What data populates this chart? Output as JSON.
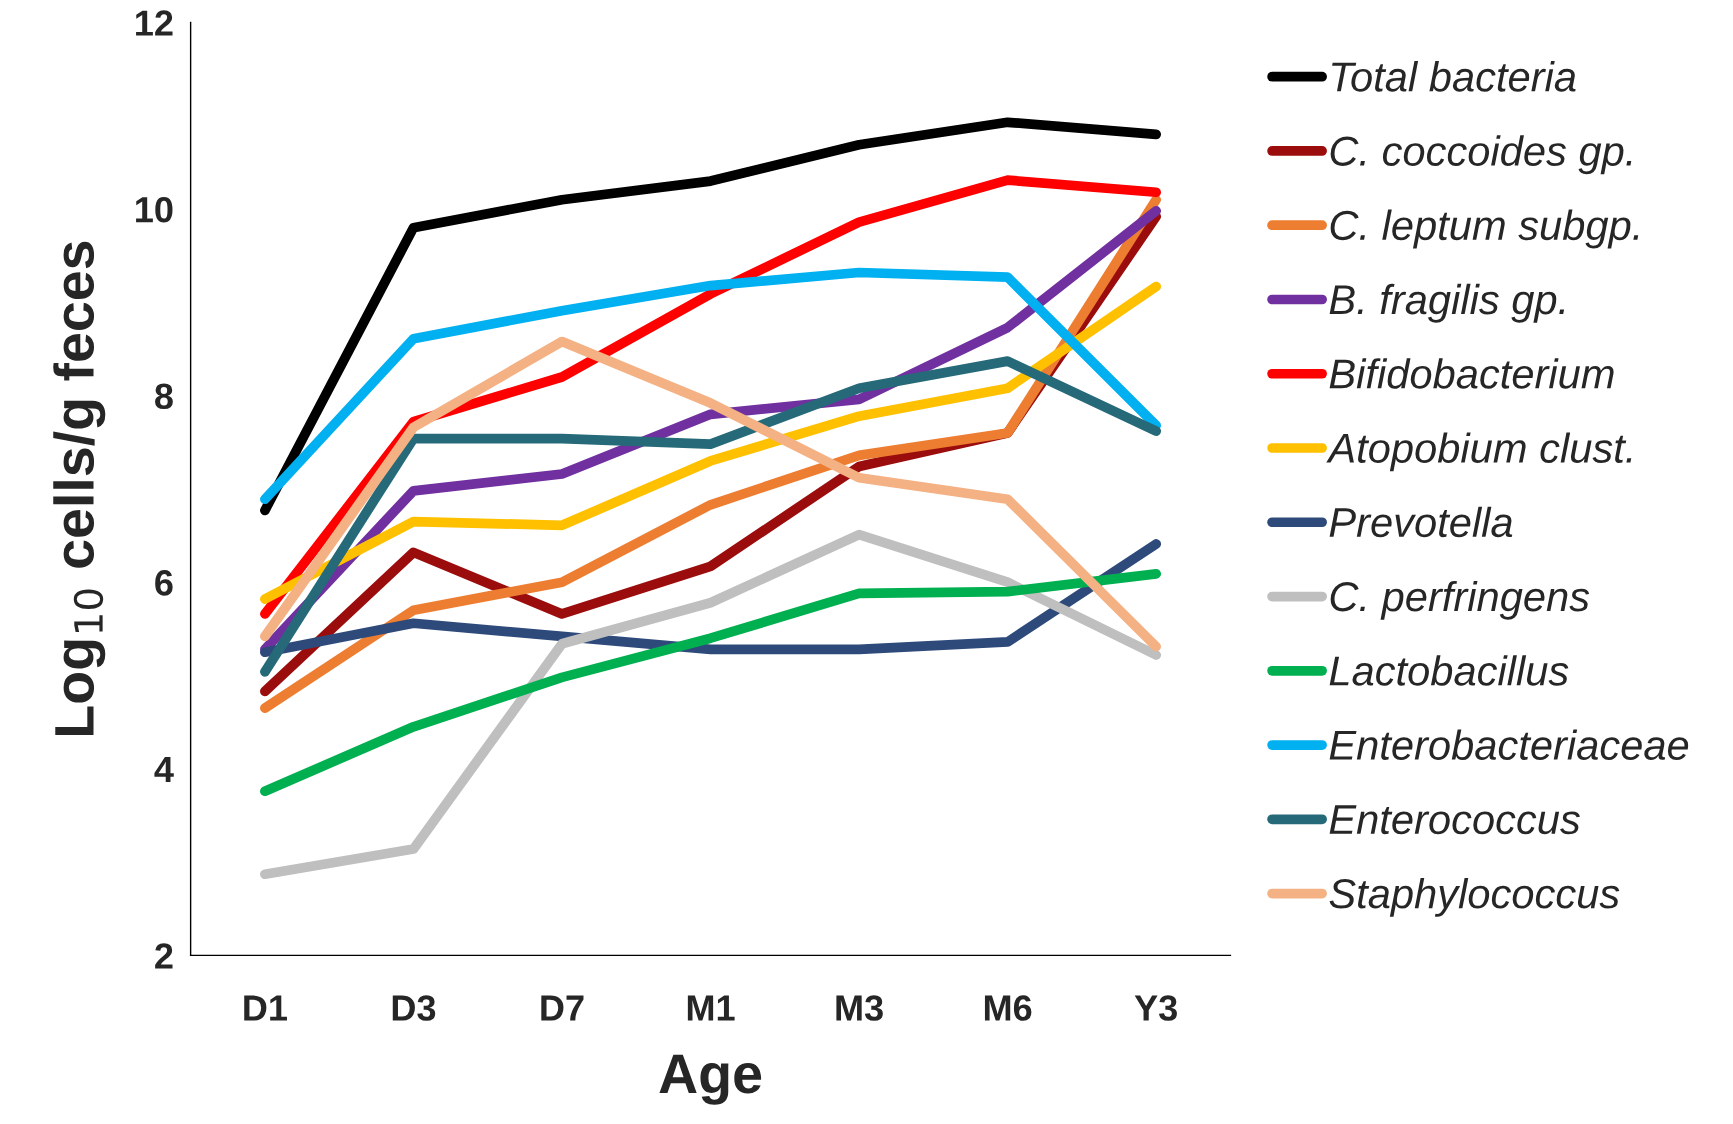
{
  "chart_data": {
    "type": "line",
    "xlabel": "Age",
    "ylabel": "Log$_{10}$ cells/g feces",
    "categories": [
      "D1",
      "D3",
      "D7",
      "M1",
      "M3",
      "M6",
      "Y3"
    ],
    "ylim": [
      2,
      12
    ],
    "yticks": [
      2,
      4,
      6,
      8,
      10,
      12
    ],
    "grid": false,
    "legend": "right",
    "marker": "none",
    "line_style": "solid",
    "series": [
      {
        "name": "Total bacteria",
        "color": "#000000",
        "values": [
          6.77,
          9.8,
          10.1,
          10.3,
          10.69,
          10.93,
          10.8
        ]
      },
      {
        "name": "C. coccoides gp.",
        "color": "#9b0d0d",
        "values": [
          4.83,
          6.32,
          5.66,
          6.17,
          7.24,
          7.6,
          9.92
        ]
      },
      {
        "name": "C. leptum subgp.",
        "color": "#ed7d31",
        "values": [
          4.65,
          5.7,
          6.0,
          6.83,
          7.36,
          7.6,
          10.1
        ]
      },
      {
        "name": "B. fragilis gp.",
        "color": "#7030a0",
        "values": [
          5.28,
          6.98,
          7.16,
          7.8,
          7.96,
          8.73,
          9.98
        ]
      },
      {
        "name": "Bifidobacterium",
        "color": "#ff0000",
        "values": [
          5.66,
          7.72,
          8.2,
          9.09,
          9.86,
          10.31,
          10.18
        ]
      },
      {
        "name": "Atopobium clust.",
        "color": "#ffc000",
        "values": [
          5.82,
          6.65,
          6.61,
          7.3,
          7.78,
          8.08,
          9.17
        ]
      },
      {
        "name": "Prevotella",
        "color": "#2e4a7a",
        "values": [
          5.25,
          5.56,
          5.42,
          5.28,
          5.28,
          5.36,
          6.41
        ]
      },
      {
        "name": "C. perfringens",
        "color": "#bfbfbf",
        "values": [
          2.87,
          3.14,
          5.34,
          5.78,
          6.51,
          6.0,
          5.22
        ]
      },
      {
        "name": "Lactobacillus",
        "color": "#00b050",
        "values": [
          3.76,
          4.45,
          4.98,
          5.4,
          5.88,
          5.9,
          6.09
        ]
      },
      {
        "name": "Enterobacteriaceae",
        "color": "#00b0f0",
        "values": [
          6.89,
          8.61,
          8.91,
          9.18,
          9.32,
          9.27,
          7.68
        ]
      },
      {
        "name": "Enterococcus",
        "color": "#266a7a",
        "values": [
          5.04,
          7.54,
          7.54,
          7.48,
          8.08,
          8.37,
          7.62
        ]
      },
      {
        "name": "Staphylococcus",
        "color": "#f4b183",
        "values": [
          5.42,
          7.66,
          8.58,
          7.92,
          7.12,
          6.89,
          5.31
        ]
      }
    ]
  }
}
